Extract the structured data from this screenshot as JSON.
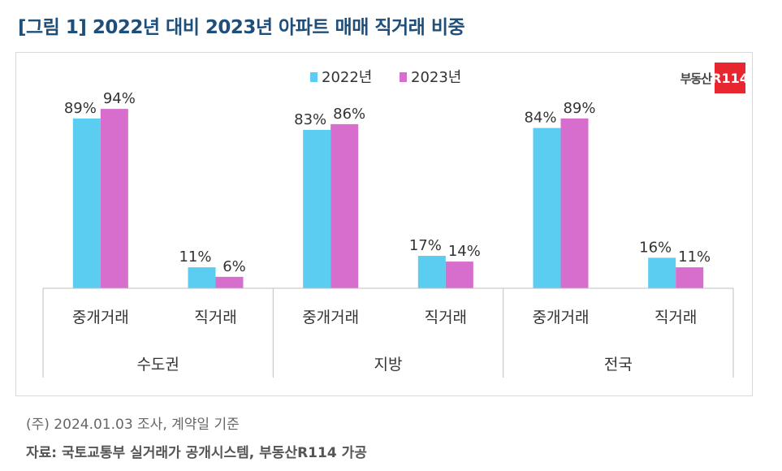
{
  "title": "[그림 1] 2022년 대비 2023년 아파트 매매 직거래 비중",
  "logo": {
    "text": "부동산",
    "badge": "R114"
  },
  "colors": {
    "series_2022": "#5bcdf0",
    "series_2023": "#d76ecd",
    "axis": "#bfbfbf"
  },
  "chart_data": {
    "type": "bar",
    "groups": [
      "수도권",
      "지방",
      "전국"
    ],
    "categories": [
      "중개거래",
      "직거래",
      "중개거래",
      "직거래",
      "중개거래",
      "직거래"
    ],
    "series": [
      {
        "name": "2022년",
        "values": [
          89,
          11,
          83,
          17,
          84,
          16
        ],
        "labels": [
          "89%",
          "11%",
          "83%",
          "17%",
          "84%",
          "16%"
        ]
      },
      {
        "name": "2023년",
        "values": [
          94,
          6,
          86,
          14,
          89,
          11
        ],
        "labels": [
          "94%",
          "6%",
          "86%",
          "14%",
          "89%",
          "11%"
        ]
      }
    ],
    "title": "",
    "xlabel": "",
    "ylabel": "",
    "ylim": [
      0,
      100
    ],
    "grid": false,
    "legend": "top-center"
  },
  "note": "(주) 2024.01.03 조사, 계약일 기준",
  "source": "자료: 국토교통부 실거래가 공개시스템, 부동산R114 가공"
}
